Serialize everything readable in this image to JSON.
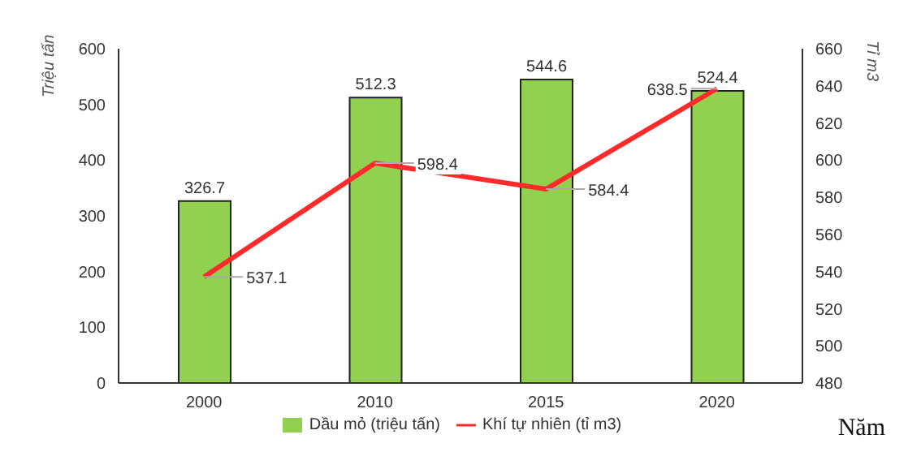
{
  "chart_data": {
    "type": "bar",
    "categories": [
      "2000",
      "2010",
      "2015",
      "2020"
    ],
    "series": [
      {
        "name": "Dầu mỏ (triệu tấn)",
        "color": "#92d050",
        "values": [
          326.7,
          512.3,
          544.6,
          524.4
        ]
      },
      {
        "name": "Khí tự nhiên (tỉ m3)",
        "type": "line",
        "axis": "y2",
        "color": "#ff2a2a",
        "values": [
          537.1,
          598.4,
          584.4,
          638.5
        ]
      }
    ],
    "ylabel": "Triệu tấn",
    "y2label": "Tỉ m3",
    "xlabel": "Năm",
    "ylim": [
      0,
      600
    ],
    "yticks": [
      0,
      100,
      200,
      300,
      400,
      500,
      600
    ],
    "y2lim": [
      480,
      660
    ],
    "y2ticks": [
      480,
      500,
      520,
      540,
      560,
      580,
      600,
      620,
      640,
      660
    ],
    "data_labels": true,
    "legend": "bottom",
    "marker": "none"
  }
}
